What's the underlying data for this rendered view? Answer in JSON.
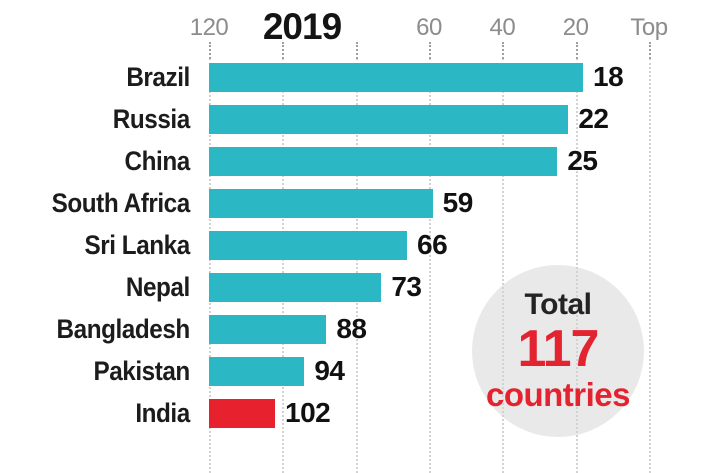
{
  "chart_data": {
    "type": "bar",
    "orientation": "horizontal",
    "title": "2019",
    "categories": [
      "Brazil",
      "Russia",
      "China",
      "South Africa",
      "Sri Lanka",
      "Nepal",
      "Bangladesh",
      "Pakistan",
      "India"
    ],
    "values": [
      18,
      22,
      25,
      59,
      66,
      73,
      88,
      94,
      102
    ],
    "bar_color": "#2cb7c4",
    "highlight": {
      "category": "India",
      "index": 8,
      "color": "#e8212e"
    },
    "value_label_position": "right-of-bar-end",
    "axis": {
      "position": "top",
      "min": 0,
      "max": 120,
      "reversed": true,
      "label_color": "#8c8c8c",
      "grid": "vertical-dotted",
      "ticks": [
        {
          "value": 120,
          "label": "120"
        },
        {
          "value": 100,
          "label": ""
        },
        {
          "value": 80,
          "label": ""
        },
        {
          "value": 60,
          "label": "60"
        },
        {
          "value": 40,
          "label": "40"
        },
        {
          "value": 20,
          "label": "20"
        },
        {
          "value": 0,
          "label": "Top"
        }
      ]
    },
    "annotation": {
      "line1": "Total",
      "line2": "117",
      "line3": "countries",
      "number_color": "#e32330",
      "circle_color": "#e9e9e9"
    }
  }
}
